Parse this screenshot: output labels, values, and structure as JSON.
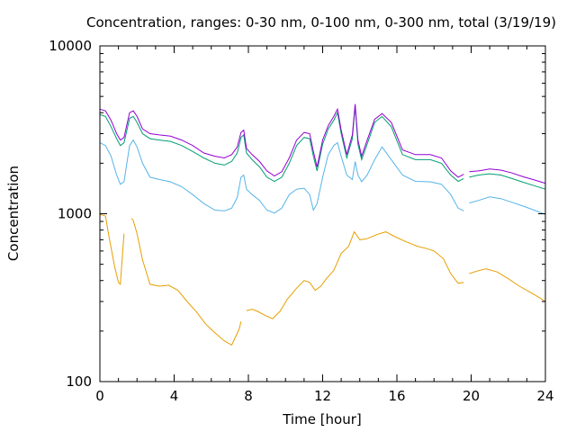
{
  "chart_data": {
    "type": "line",
    "title": "Concentration, ranges: 0-30 nm, 0-100 nm, 0-300 nm, total (3/19/19)",
    "xlabel": "Time [hour]",
    "ylabel": "Concentration",
    "xlim": [
      0,
      24
    ],
    "ylim": [
      100,
      10000
    ],
    "yscale": "log",
    "x_ticks": [
      "0",
      "4",
      "8",
      "12",
      "16",
      "20",
      "24"
    ],
    "y_ticks": [
      "100",
      "1000",
      "10000"
    ],
    "grid": false,
    "series": [
      {
        "color": "#e69f00",
        "x": [
          0,
          0.3,
          0.5,
          0.8,
          1.0,
          1.1,
          1.3,
          1.6,
          1.7,
          1.8,
          2.0,
          2.3,
          2.7,
          3.2,
          3.7,
          4.2,
          4.7,
          5.2,
          5.7,
          6.2,
          6.7,
          7.1,
          7.5,
          7.6,
          7.7,
          7.9,
          8.2,
          8.5,
          8.9,
          9.3,
          9.7,
          10.1,
          10.6,
          11.0,
          11.3,
          11.6,
          11.9,
          12.2,
          12.6,
          13.0,
          13.4,
          13.7,
          14.0,
          14.4,
          14.9,
          15.4,
          15.9,
          16.5,
          17.1,
          17.6,
          18.0,
          18.5,
          18.9,
          19.3,
          19.6,
          19.75,
          19.9,
          20.3,
          20.8,
          21.4,
          22.0,
          22.6,
          23.2,
          23.6,
          24.0
        ],
        "y": [
          990,
          970,
          720,
          480,
          390,
          380,
          760,
          null,
          940,
          910,
          760,
          530,
          380,
          370,
          375,
          350,
          300,
          260,
          220,
          195,
          175,
          165,
          205,
          228,
          null,
          265,
          270,
          262,
          248,
          237,
          262,
          310,
          360,
          400,
          390,
          350,
          370,
          410,
          460,
          580,
          640,
          780,
          700,
          710,
          750,
          780,
          730,
          680,
          640,
          620,
          600,
          540,
          440,
          385,
          390,
          null,
          440,
          455,
          470,
          450,
          410,
          370,
          340,
          320,
          300
        ]
      },
      {
        "color": "#56b4e9",
        "x": [
          0,
          0.3,
          0.6,
          0.9,
          1.1,
          1.3,
          1.6,
          1.8,
          2.0,
          2.3,
          2.7,
          3.2,
          3.8,
          4.4,
          5.0,
          5.6,
          6.2,
          6.7,
          7.1,
          7.4,
          7.6,
          7.75,
          7.9,
          8.2,
          8.6,
          9.0,
          9.4,
          9.8,
          10.2,
          10.6,
          11.0,
          11.3,
          11.5,
          11.7,
          12.0,
          12.3,
          12.6,
          12.8,
          13.0,
          13.3,
          13.6,
          13.75,
          13.9,
          14.1,
          14.4,
          14.8,
          15.2,
          15.7,
          16.3,
          17.0,
          17.8,
          18.4,
          18.9,
          19.3,
          19.6,
          19.75,
          19.9,
          20.4,
          21.0,
          21.6,
          22.2,
          22.8,
          23.4,
          24.0
        ],
        "y": [
          2650,
          2550,
          2200,
          1700,
          1500,
          1550,
          2550,
          2750,
          2500,
          2000,
          1650,
          1600,
          1550,
          1450,
          1300,
          1150,
          1050,
          1040,
          1080,
          1250,
          1650,
          1700,
          1400,
          1300,
          1200,
          1050,
          1010,
          1080,
          1300,
          1400,
          1420,
          1300,
          1050,
          1150,
          1650,
          2250,
          2550,
          2650,
          2200,
          1700,
          1600,
          2050,
          1700,
          1550,
          1700,
          2100,
          2500,
          2100,
          1700,
          1560,
          1550,
          1500,
          1300,
          1080,
          1040,
          null,
          1160,
          1200,
          1260,
          1230,
          1170,
          1110,
          1050,
          990
        ]
      },
      {
        "color": "#009e73",
        "x": [
          0,
          0.3,
          0.6,
          0.9,
          1.1,
          1.3,
          1.6,
          1.8,
          2.0,
          2.3,
          2.7,
          3.2,
          3.8,
          4.4,
          5.0,
          5.6,
          6.2,
          6.7,
          7.1,
          7.4,
          7.6,
          7.75,
          7.9,
          8.2,
          8.6,
          9.0,
          9.4,
          9.8,
          10.2,
          10.6,
          11.0,
          11.3,
          11.5,
          11.7,
          12.0,
          12.3,
          12.6,
          12.8,
          13.0,
          13.3,
          13.6,
          13.75,
          13.9,
          14.1,
          14.4,
          14.8,
          15.2,
          15.7,
          16.3,
          17.0,
          17.8,
          18.4,
          18.9,
          19.3,
          19.6,
          19.75,
          19.9,
          20.4,
          21.0,
          21.6,
          22.2,
          22.8,
          23.4,
          24.0
        ],
        "y": [
          3900,
          3800,
          3300,
          2800,
          2550,
          2650,
          3700,
          3800,
          3500,
          3000,
          2800,
          2750,
          2700,
          2550,
          2350,
          2150,
          2000,
          1950,
          2050,
          2300,
          2850,
          2950,
          2300,
          2100,
          1900,
          1650,
          1560,
          1650,
          2000,
          2550,
          2850,
          2800,
          2200,
          1800,
          2600,
          3200,
          3600,
          4000,
          3000,
          2150,
          2800,
          4400,
          2600,
          2100,
          2600,
          3500,
          3800,
          3300,
          2250,
          2100,
          2100,
          2000,
          1700,
          1560,
          1620,
          null,
          1650,
          1700,
          1730,
          1700,
          1620,
          1540,
          1470,
          1400
        ]
      },
      {
        "color": "#9400d3",
        "x": [
          0,
          0.3,
          0.6,
          0.9,
          1.1,
          1.3,
          1.6,
          1.8,
          2.0,
          2.3,
          2.7,
          3.2,
          3.8,
          4.4,
          5.0,
          5.6,
          6.2,
          6.7,
          7.1,
          7.4,
          7.6,
          7.75,
          7.9,
          8.2,
          8.6,
          9.0,
          9.4,
          9.8,
          10.2,
          10.6,
          11.0,
          11.3,
          11.5,
          11.7,
          12.0,
          12.3,
          12.6,
          12.8,
          13.0,
          13.3,
          13.6,
          13.75,
          13.9,
          14.1,
          14.4,
          14.8,
          15.2,
          15.7,
          16.3,
          17.0,
          17.8,
          18.4,
          18.9,
          19.3,
          19.6,
          19.75,
          19.9,
          20.4,
          21.0,
          21.6,
          22.2,
          22.8,
          23.4,
          24.0
        ],
        "y": [
          4200,
          4100,
          3600,
          3000,
          2750,
          2850,
          4000,
          4100,
          3800,
          3200,
          3000,
          2950,
          2900,
          2750,
          2550,
          2300,
          2200,
          2150,
          2250,
          2500,
          3050,
          3150,
          2450,
          2250,
          2050,
          1800,
          1680,
          1780,
          2150,
          2750,
          3050,
          3000,
          2350,
          1900,
          2750,
          3350,
          3800,
          4200,
          3150,
          2250,
          2950,
          4500,
          2750,
          2200,
          2750,
          3650,
          3950,
          3500,
          2400,
          2250,
          2250,
          2150,
          1800,
          1650,
          1720,
          null,
          1780,
          1800,
          1850,
          1820,
          1750,
          1660,
          1590,
          1520
        ]
      }
    ]
  }
}
